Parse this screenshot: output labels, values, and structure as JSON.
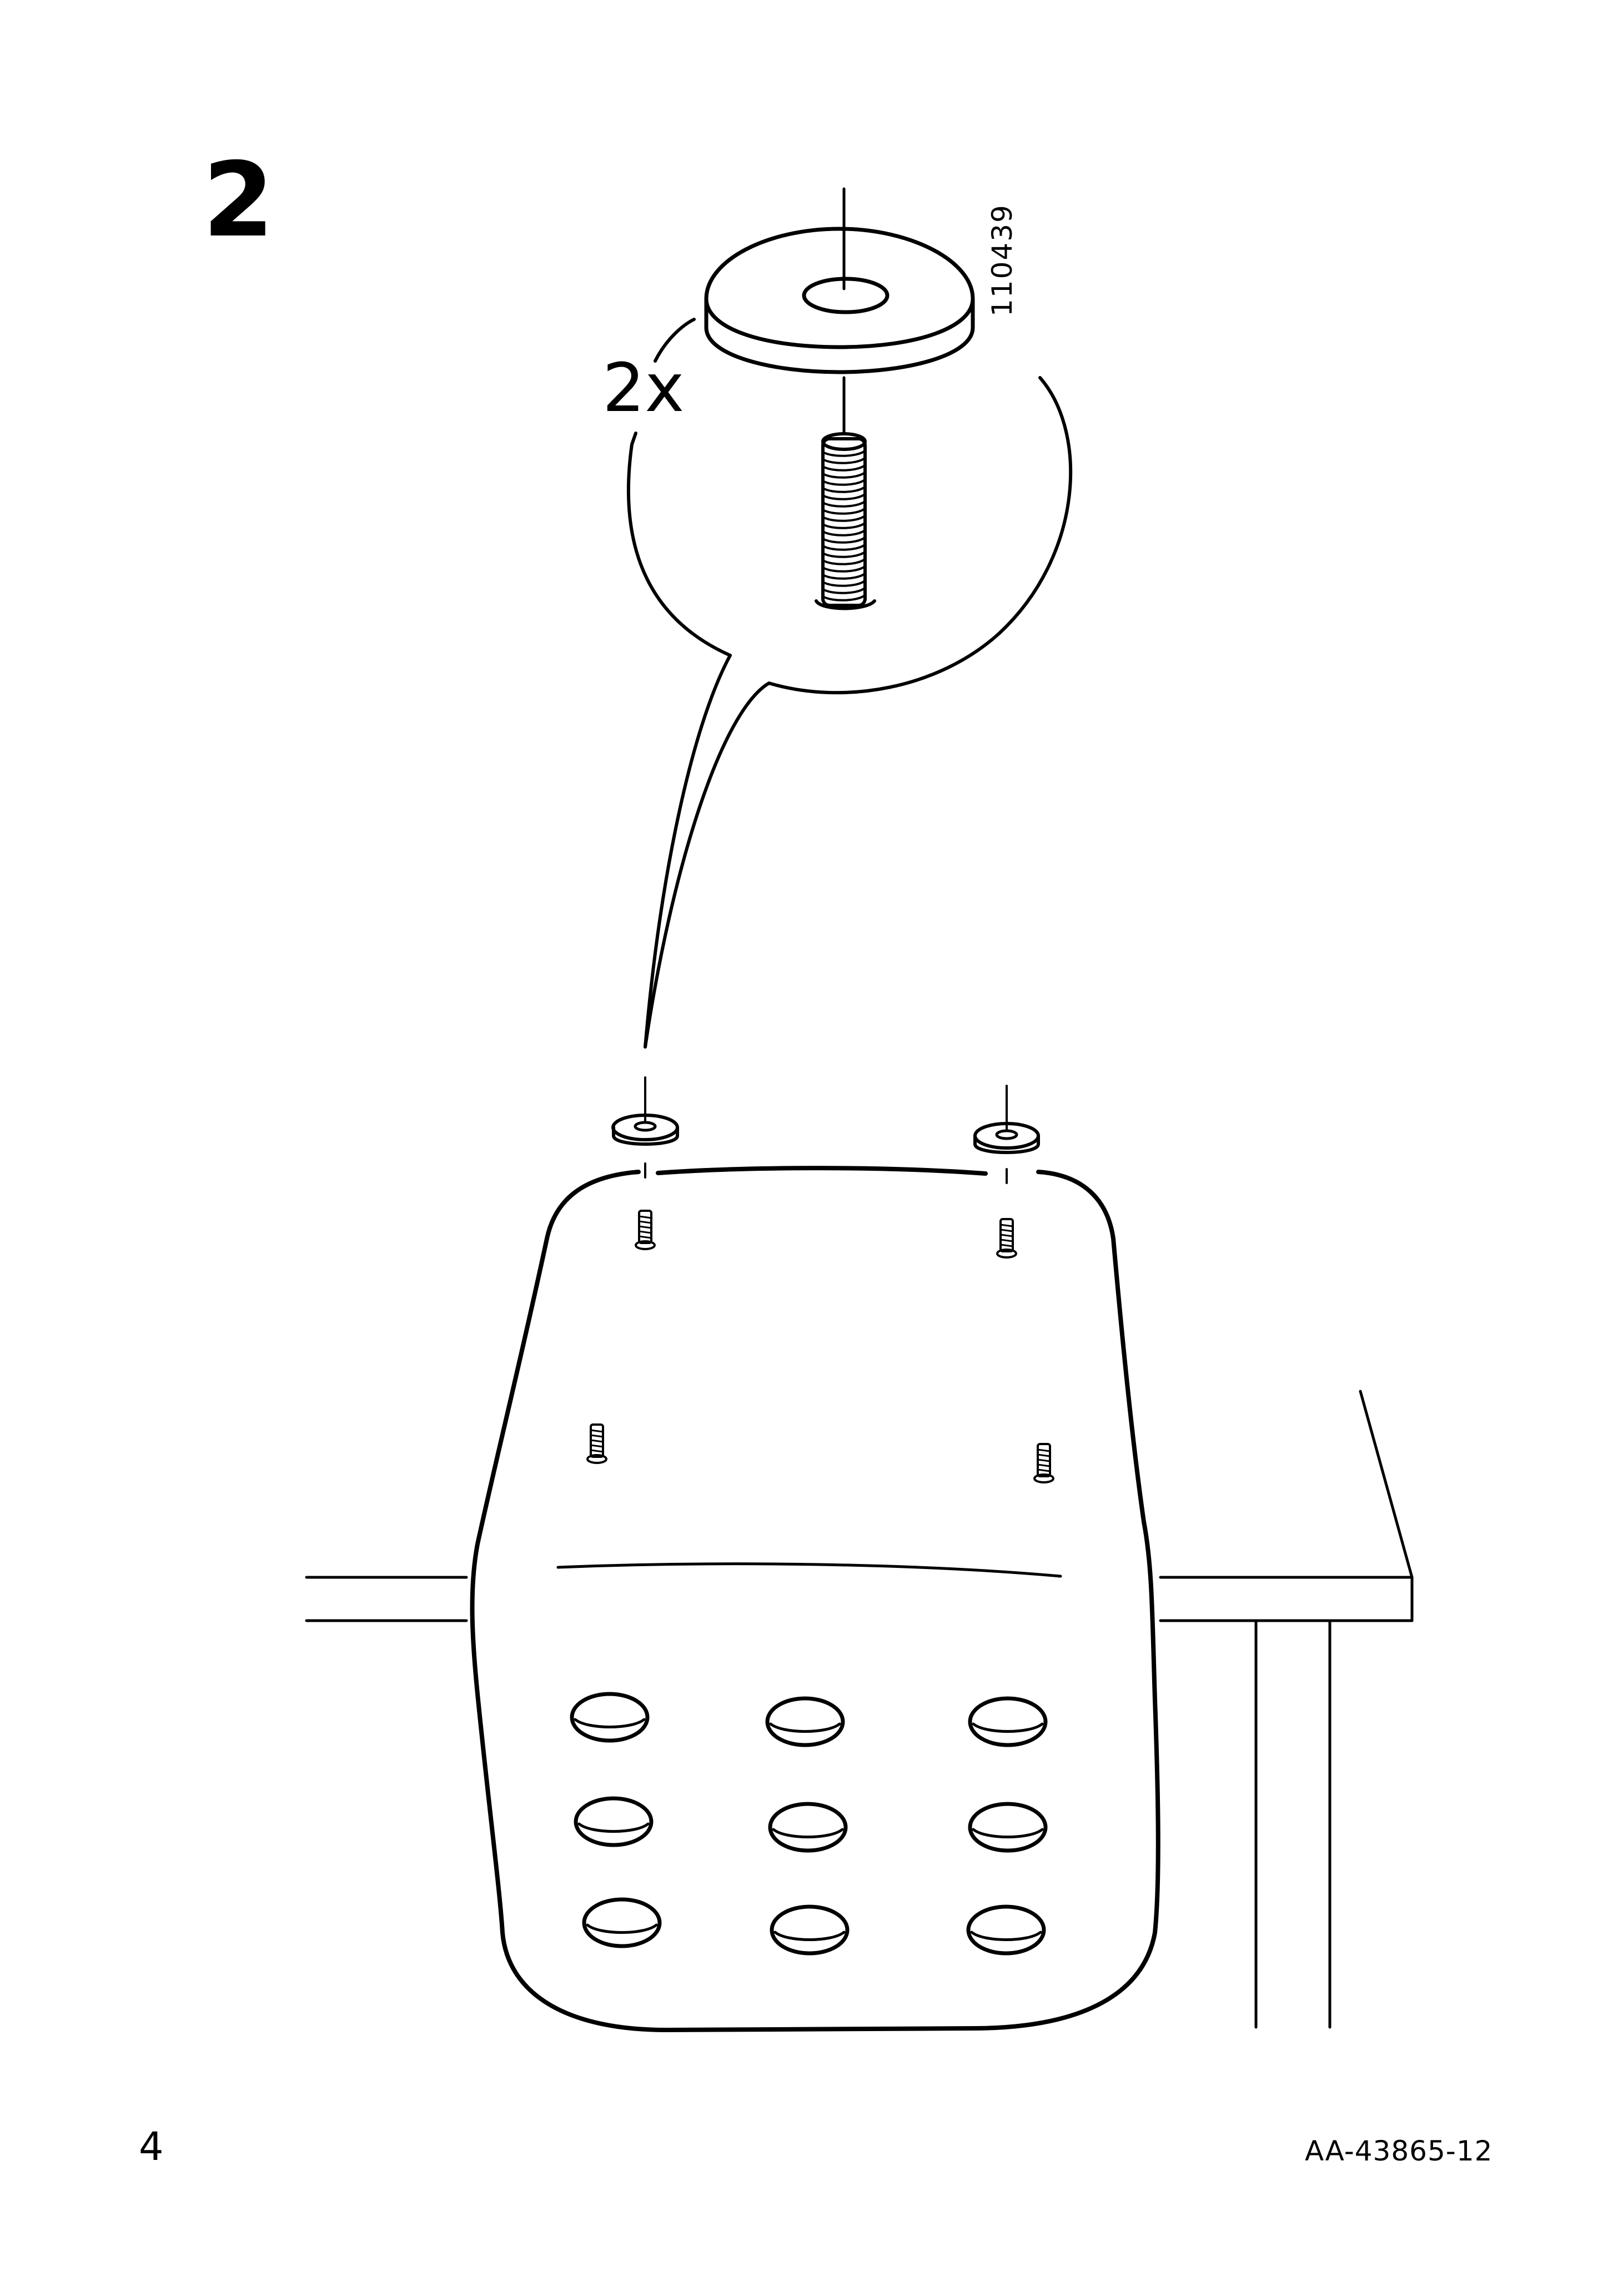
{
  "step": {
    "number": "2"
  },
  "detail": {
    "quantity": "2x",
    "part_number": "110439"
  },
  "footer": {
    "page_number": "4",
    "document_code": "AA-43865-12"
  }
}
